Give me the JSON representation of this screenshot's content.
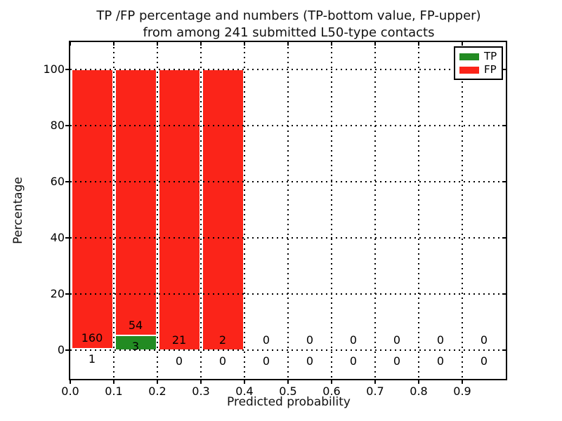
{
  "figure": {
    "background": "#ffffff"
  },
  "chart_data": {
    "type": "bar",
    "stacked": true,
    "title_line1": "TP /FP percentage and numbers (TP-bottom value, FP-upper)",
    "title_line2": "from among 241 submitted L50-type contacts",
    "xlabel": "Predicted probability",
    "ylabel": "Percentage",
    "xlim": [
      0.0,
      1.0
    ],
    "ylim": [
      -10.25,
      109.75
    ],
    "xticks": [
      0.0,
      0.1,
      0.2,
      0.3,
      0.4,
      0.5,
      0.6,
      0.7,
      0.8,
      0.9
    ],
    "xtick_labels": [
      "0.0",
      "0.1",
      "0.2",
      "0.3",
      "0.4",
      "0.5",
      "0.6",
      "0.7",
      "0.8",
      "0.9"
    ],
    "yticks": [
      0,
      20,
      40,
      60,
      80,
      100
    ],
    "ytick_labels": [
      "0",
      "20",
      "40",
      "60",
      "80",
      "100"
    ],
    "grid": "dotted",
    "legend_position": "upper-right",
    "legend": [
      {
        "label": "TP",
        "color": "#228b22"
      },
      {
        "label": "FP",
        "color": "#fb2419"
      }
    ],
    "bins": [
      {
        "x0": 0.0,
        "x1": 0.1,
        "tp": 1,
        "fp": 160,
        "tp_pct": 0.62,
        "fp_pct": 99.38
      },
      {
        "x0": 0.1,
        "x1": 0.2,
        "tp": 3,
        "fp": 54,
        "tp_pct": 5.26,
        "fp_pct": 94.74
      },
      {
        "x0": 0.2,
        "x1": 0.3,
        "tp": 0,
        "fp": 21,
        "tp_pct": 0.0,
        "fp_pct": 100.0
      },
      {
        "x0": 0.3,
        "x1": 0.4,
        "tp": 0,
        "fp": 2,
        "tp_pct": 0.0,
        "fp_pct": 100.0
      },
      {
        "x0": 0.4,
        "x1": 0.5,
        "tp": 0,
        "fp": 0,
        "tp_pct": 0.0,
        "fp_pct": 0.0
      },
      {
        "x0": 0.5,
        "x1": 0.6,
        "tp": 0,
        "fp": 0,
        "tp_pct": 0.0,
        "fp_pct": 0.0
      },
      {
        "x0": 0.6,
        "x1": 0.7,
        "tp": 0,
        "fp": 0,
        "tp_pct": 0.0,
        "fp_pct": 0.0
      },
      {
        "x0": 0.7,
        "x1": 0.8,
        "tp": 0,
        "fp": 0,
        "tp_pct": 0.0,
        "fp_pct": 0.0
      },
      {
        "x0": 0.8,
        "x1": 0.9,
        "tp": 0,
        "fp": 0,
        "tp_pct": 0.0,
        "fp_pct": 0.0
      },
      {
        "x0": 0.9,
        "x1": 1.0,
        "tp": 0,
        "fp": 0,
        "tp_pct": 0.0,
        "fp_pct": 0.0
      }
    ]
  }
}
